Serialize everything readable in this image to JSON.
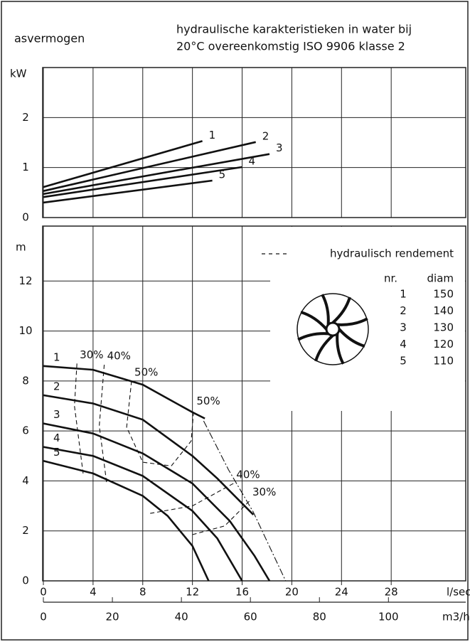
{
  "chart_data": [
    {
      "type": "line",
      "title_lines": [
        "hydraulische karakteristieken in water bij",
        "20°C overeenkomstig ISO 9906 klasse 2"
      ],
      "ylabel": "asvermogen",
      "yunit": "kW",
      "xlim": [
        0,
        34
      ],
      "ylim": [
        0,
        3
      ],
      "yticks": [
        0,
        1,
        2
      ],
      "grid": true,
      "color": "#111111",
      "series": [
        {
          "name": "1",
          "x": [
            0,
            12.8
          ],
          "values": [
            0.61,
            1.53
          ]
        },
        {
          "name": "2",
          "x": [
            0,
            17.1
          ],
          "values": [
            0.53,
            1.51
          ]
        },
        {
          "name": "3",
          "x": [
            0,
            18.2
          ],
          "values": [
            0.47,
            1.27
          ]
        },
        {
          "name": "4",
          "x": [
            0,
            16.0
          ],
          "values": [
            0.41,
            1.01
          ]
        },
        {
          "name": "5",
          "x": [
            0,
            13.6
          ],
          "values": [
            0.3,
            0.74
          ]
        }
      ]
    },
    {
      "type": "line",
      "ylabel": "m",
      "xlabel": "l/sec",
      "x2label": "m3/h",
      "xlim": [
        0,
        34
      ],
      "xticks": [
        0,
        4,
        8,
        12,
        16,
        20,
        24,
        28
      ],
      "x2lim": [
        0,
        122.4
      ],
      "x2ticks": [
        0,
        20,
        40,
        60,
        80,
        100
      ],
      "ylim": [
        0,
        14.2
      ],
      "yticks": [
        0,
        2,
        4,
        6,
        8,
        10,
        12
      ],
      "grid": true,
      "color": "#111111",
      "series": [
        {
          "name": "1",
          "x": [
            0,
            4,
            8,
            10,
            12,
            13
          ],
          "values": [
            8.6,
            8.45,
            7.85,
            7.3,
            6.75,
            6.5
          ]
        },
        {
          "name": "2",
          "x": [
            0,
            4,
            8,
            12,
            14,
            16,
            16.9
          ],
          "values": [
            7.43,
            7.1,
            6.45,
            5.0,
            4.1,
            3.1,
            2.65
          ]
        },
        {
          "name": "3",
          "x": [
            0,
            4,
            8,
            12,
            15,
            17,
            18.2
          ],
          "values": [
            6.3,
            5.9,
            5.1,
            3.9,
            2.4,
            1.0,
            0
          ]
        },
        {
          "name": "4",
          "x": [
            0,
            4,
            8,
            12,
            14,
            16
          ],
          "values": [
            5.36,
            5.0,
            4.2,
            2.8,
            1.7,
            0
          ]
        },
        {
          "name": "5",
          "x": [
            0,
            4,
            8,
            10,
            12,
            13.3
          ],
          "values": [
            4.8,
            4.3,
            3.4,
            2.6,
            1.4,
            0
          ]
        }
      ],
      "efficiency_curves": [
        {
          "label": "30%",
          "style": "dashed",
          "x": [
            2.7,
            2.5,
            3.2
          ],
          "values": [
            8.7,
            7.0,
            4.3
          ]
        },
        {
          "label": "40%",
          "style": "dashed",
          "x": [
            4.9,
            4.5,
            5.1
          ],
          "values": [
            8.65,
            6.2,
            3.9
          ]
        },
        {
          "label": "50%",
          "style": "dashed",
          "x": [
            7.1,
            6.7,
            8.0,
            10.3
          ],
          "values": [
            8.0,
            6.15,
            4.75,
            4.6
          ]
        },
        {
          "label": "50%",
          "style": "dashed",
          "x": [
            10.3,
            11.9,
            12.1
          ],
          "values": [
            4.6,
            5.6,
            6.85
          ]
        },
        {
          "label": "40%",
          "style": "dashed",
          "x": [
            8.6,
            12.0,
            15.3
          ],
          "values": [
            2.7,
            3.0,
            3.9
          ]
        },
        {
          "label": "30%",
          "style": "dashed",
          "x": [
            12.0,
            14.6,
            16.6
          ],
          "values": [
            1.85,
            2.2,
            3.2
          ]
        },
        {
          "style": "dashdot",
          "x": [
            12.9,
            14.9,
            16.9,
            19.5
          ],
          "values": [
            6.4,
            4.45,
            2.75,
            0
          ]
        }
      ],
      "legend_title": "hydraulisch rendement",
      "table": {
        "columns": [
          "nr.",
          "diam"
        ],
        "rows": [
          [
            1,
            150
          ],
          [
            2,
            140
          ],
          [
            3,
            130
          ],
          [
            4,
            120
          ],
          [
            5,
            110
          ]
        ]
      }
    }
  ]
}
